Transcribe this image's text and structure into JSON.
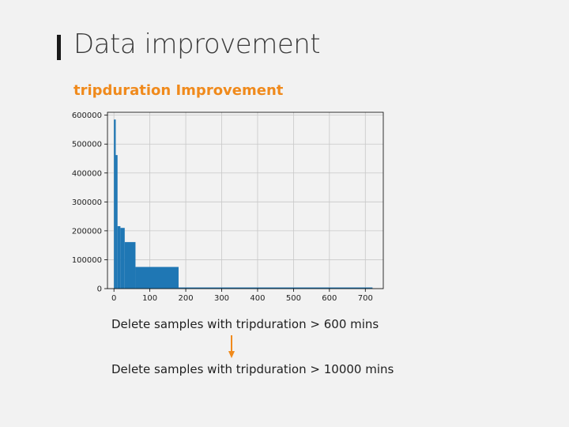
{
  "slide": {
    "title": "Data improvement",
    "subtitle": "tripduration Improvement",
    "caption_before": "Delete samples with tripduration > 600 mins",
    "caption_after": "Delete samples with tripduration > 10000 mins",
    "accent_color": "#f08a1c",
    "title_bar_color": "#1a1a1a"
  },
  "chart_data": {
    "type": "bar",
    "title": "",
    "xlabel": "",
    "ylabel": "",
    "bar_color": "#1f77b4",
    "grid": true,
    "xlim": [
      -18,
      750
    ],
    "ylim": [
      0,
      610000
    ],
    "xticks": [
      0,
      100,
      200,
      300,
      400,
      500,
      600,
      700
    ],
    "yticks": [
      0,
      100000,
      200000,
      300000,
      400000,
      500000,
      600000
    ],
    "bins": [
      {
        "x0": 0,
        "x1": 5,
        "value": 585000
      },
      {
        "x0": 5,
        "x1": 10,
        "value": 462000
      },
      {
        "x0": 10,
        "x1": 18,
        "value": 216000
      },
      {
        "x0": 18,
        "x1": 30,
        "value": 210000
      },
      {
        "x0": 30,
        "x1": 60,
        "value": 161000
      },
      {
        "x0": 60,
        "x1": 180,
        "value": 75000
      },
      {
        "x0": 180,
        "x1": 720,
        "value": 4000
      }
    ]
  }
}
